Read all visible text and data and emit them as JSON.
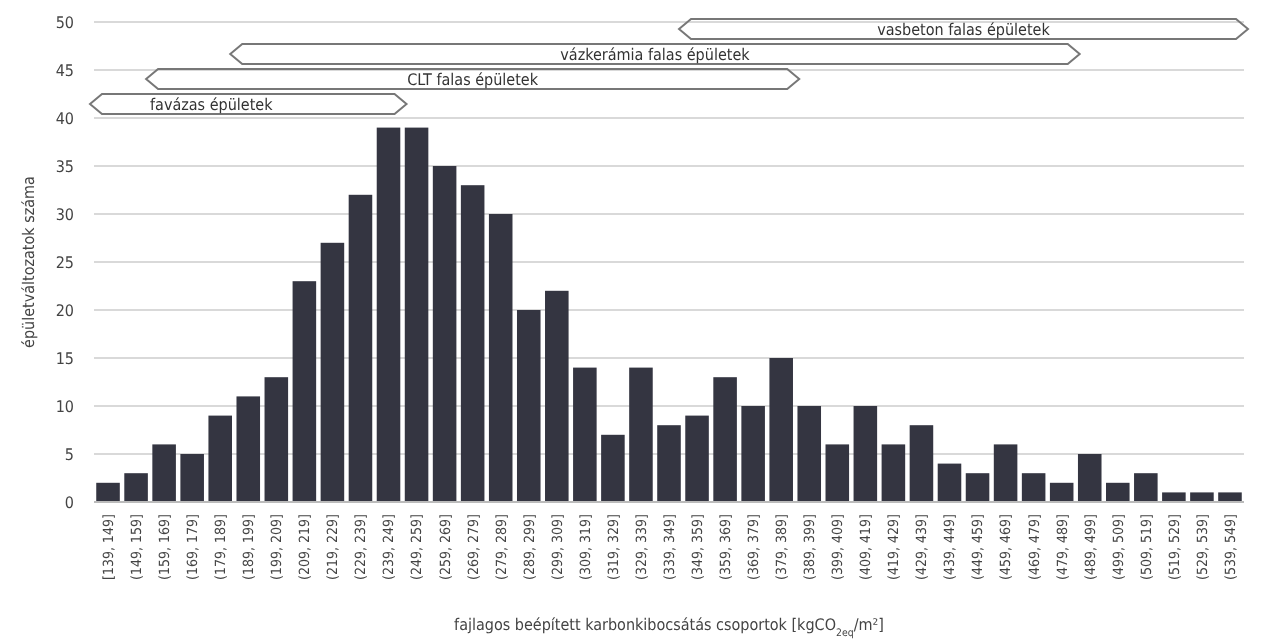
{
  "chart_data": {
    "type": "bar",
    "xlabel": "fajlagos beépített karbonkibocsátás csoportok [kgCO$_{2eq}$/m²]",
    "ylabel": "épületváltozatok száma",
    "categories": [
      "[139, 149]",
      "(149, 159]",
      "(159, 169]",
      "(169, 179]",
      "(179, 189]",
      "(189, 199]",
      "(199, 209]",
      "(209, 219]",
      "(219, 229]",
      "(229, 239]",
      "(239, 249]",
      "(249, 259]",
      "(259, 269]",
      "(269, 279]",
      "(279, 289]",
      "(289, 299]",
      "(299, 309]",
      "(309, 319]",
      "(319, 329]",
      "(329, 339]",
      "(339, 349]",
      "(349, 359]",
      "(359, 369]",
      "(369, 379]",
      "(379, 389]",
      "(389, 399]",
      "(399, 409]",
      "(409, 419]",
      "(419, 429]",
      "(429, 439]",
      "(439, 449]",
      "(449, 459]",
      "(459, 469]",
      "(469, 479]",
      "(479, 489]",
      "(489, 499]",
      "(499, 509]",
      "(509, 519]",
      "(519, 529]",
      "(529, 539]",
      "(539, 549]"
    ],
    "values": [
      2,
      3,
      6,
      5,
      9,
      11,
      13,
      23,
      27,
      32,
      39,
      39,
      35,
      33,
      30,
      20,
      22,
      14,
      7,
      14,
      8,
      9,
      13,
      10,
      15,
      10,
      6,
      10,
      6,
      8,
      4,
      3,
      6,
      3,
      2,
      5,
      2,
      3,
      1,
      1,
      1
    ],
    "color": "#343541",
    "ylim": [
      0,
      50
    ],
    "yticks": [
      0,
      5,
      10,
      15,
      20,
      25,
      30,
      35,
      40,
      45,
      50
    ],
    "grid": "y",
    "annotations": [
      "favázas épületek",
      "CLT falas épületek",
      "vázkerámia falas épületek",
      "vasbeton falas épületek"
    ]
  }
}
